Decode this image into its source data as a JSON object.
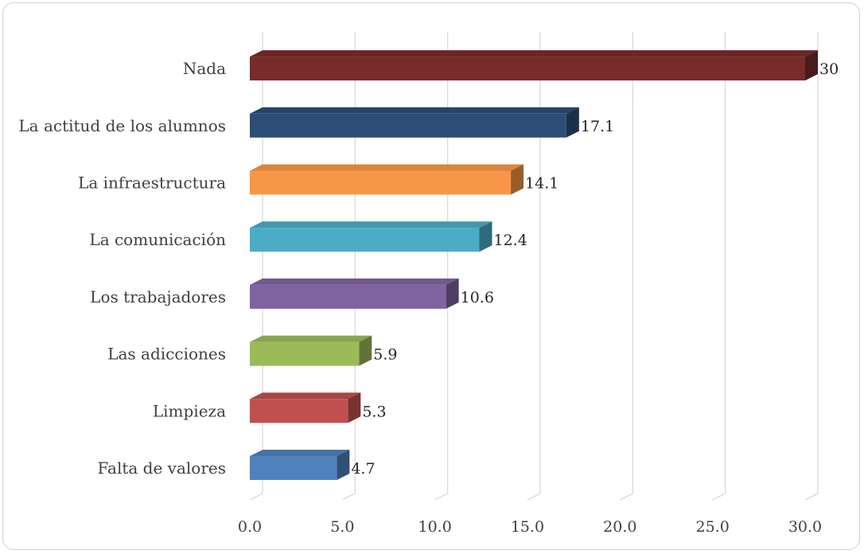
{
  "chart_data": {
    "type": "bar",
    "orientation": "horizontal",
    "style": "3d",
    "categories": [
      "Falta de valores",
      "Limpieza ",
      "Las adicciones",
      "Los trabajadores",
      "La comunicación",
      "La infraestructura",
      "La actitud de los alumnos",
      "Nada"
    ],
    "values": [
      4.7,
      5.3,
      5.9,
      10.6,
      12.4,
      14.1,
      17.1,
      30
    ],
    "data_labels": [
      "4.7",
      "5.3",
      "5.9",
      "10.6",
      "12.4",
      "14.1",
      "17.1",
      "30"
    ],
    "colors": [
      "#4f81bd",
      "#c0504d",
      "#9bbb59",
      "#8064a2",
      "#4bacc6",
      "#f79646",
      "#2c4d75",
      "#772c2a"
    ],
    "xlim": [
      0,
      30
    ],
    "x_ticks": [
      0,
      5,
      10,
      15,
      20,
      25,
      30
    ],
    "x_tick_labels": [
      "0.0",
      "5.0",
      "10.0",
      "15.0",
      "20.0",
      "25.0",
      "30.0"
    ],
    "grid": true,
    "legend": "none",
    "title": "",
    "xlabel": "",
    "ylabel": ""
  }
}
